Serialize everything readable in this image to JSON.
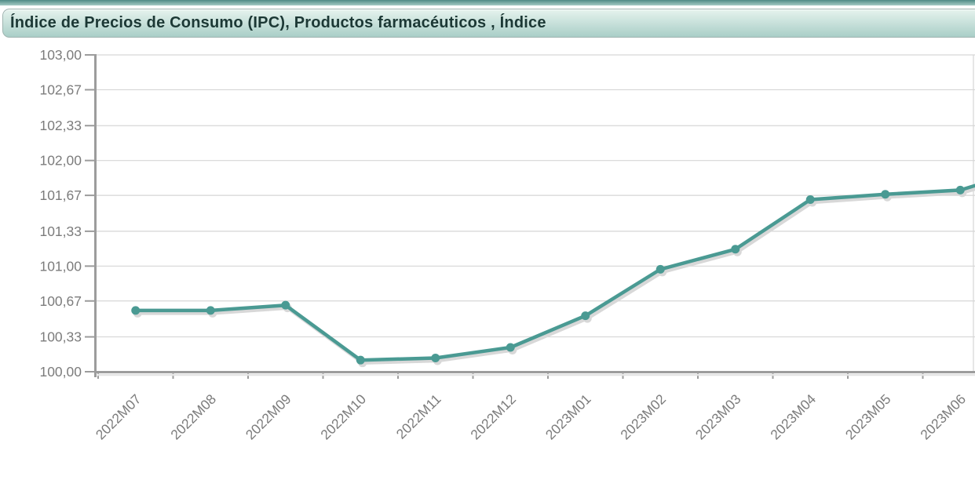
{
  "header": {
    "title": "Índice de Precios de Consumo (IPC), Productos farmacéuticos , Índice"
  },
  "colors": {
    "line": "#4a9a93",
    "marker": "#4a9a93",
    "shadow": "#d8d8d8",
    "grid": "#d6d6d6",
    "axis": "#9c9c9c",
    "axis_shadow": "#e4e4e4",
    "tick_label": "#7c7c7c",
    "header_text": "#1c3835",
    "header_bar_top": "#e6f3ee",
    "header_bar_bottom": "#a9cec7",
    "accent_strip_top": "#4e8a85",
    "accent_strip_bottom": "#a5cbc5"
  },
  "chart_data": {
    "type": "line",
    "title": "Índice de Precios de Consumo (IPC), Productos farmacéuticos , Índice",
    "xlabel": "",
    "ylabel": "",
    "categories": [
      "2022M07",
      "2022M08",
      "2022M09",
      "2022M10",
      "2022M11",
      "2022M12",
      "2023M01",
      "2023M02",
      "2023M03",
      "2023M04",
      "2023M05",
      "2023M06"
    ],
    "series": [
      {
        "name": "Índice",
        "values": [
          100.58,
          100.58,
          100.63,
          100.11,
          100.13,
          100.23,
          100.53,
          100.97,
          101.16,
          101.63,
          101.68,
          101.72
        ]
      }
    ],
    "ylim": [
      100,
      103
    ],
    "yticks": [
      {
        "label": "103,00",
        "value": 103.0
      },
      {
        "label": "102,67",
        "value": 102.67
      },
      {
        "label": "102,33",
        "value": 102.33
      },
      {
        "label": "102,00",
        "value": 102.0
      },
      {
        "label": "101,67",
        "value": 101.67
      },
      {
        "label": "101,33",
        "value": 101.33
      },
      {
        "label": "101,00",
        "value": 101.0
      },
      {
        "label": "100,67",
        "value": 100.67
      },
      {
        "label": "100,33",
        "value": 100.33
      },
      {
        "label": "100,00",
        "value": 100.0
      }
    ],
    "grid": true,
    "legend": "none",
    "marker": "circle",
    "x_label_rotation": -45,
    "decimal_separator": ",",
    "line_clipped_at_right": true
  }
}
